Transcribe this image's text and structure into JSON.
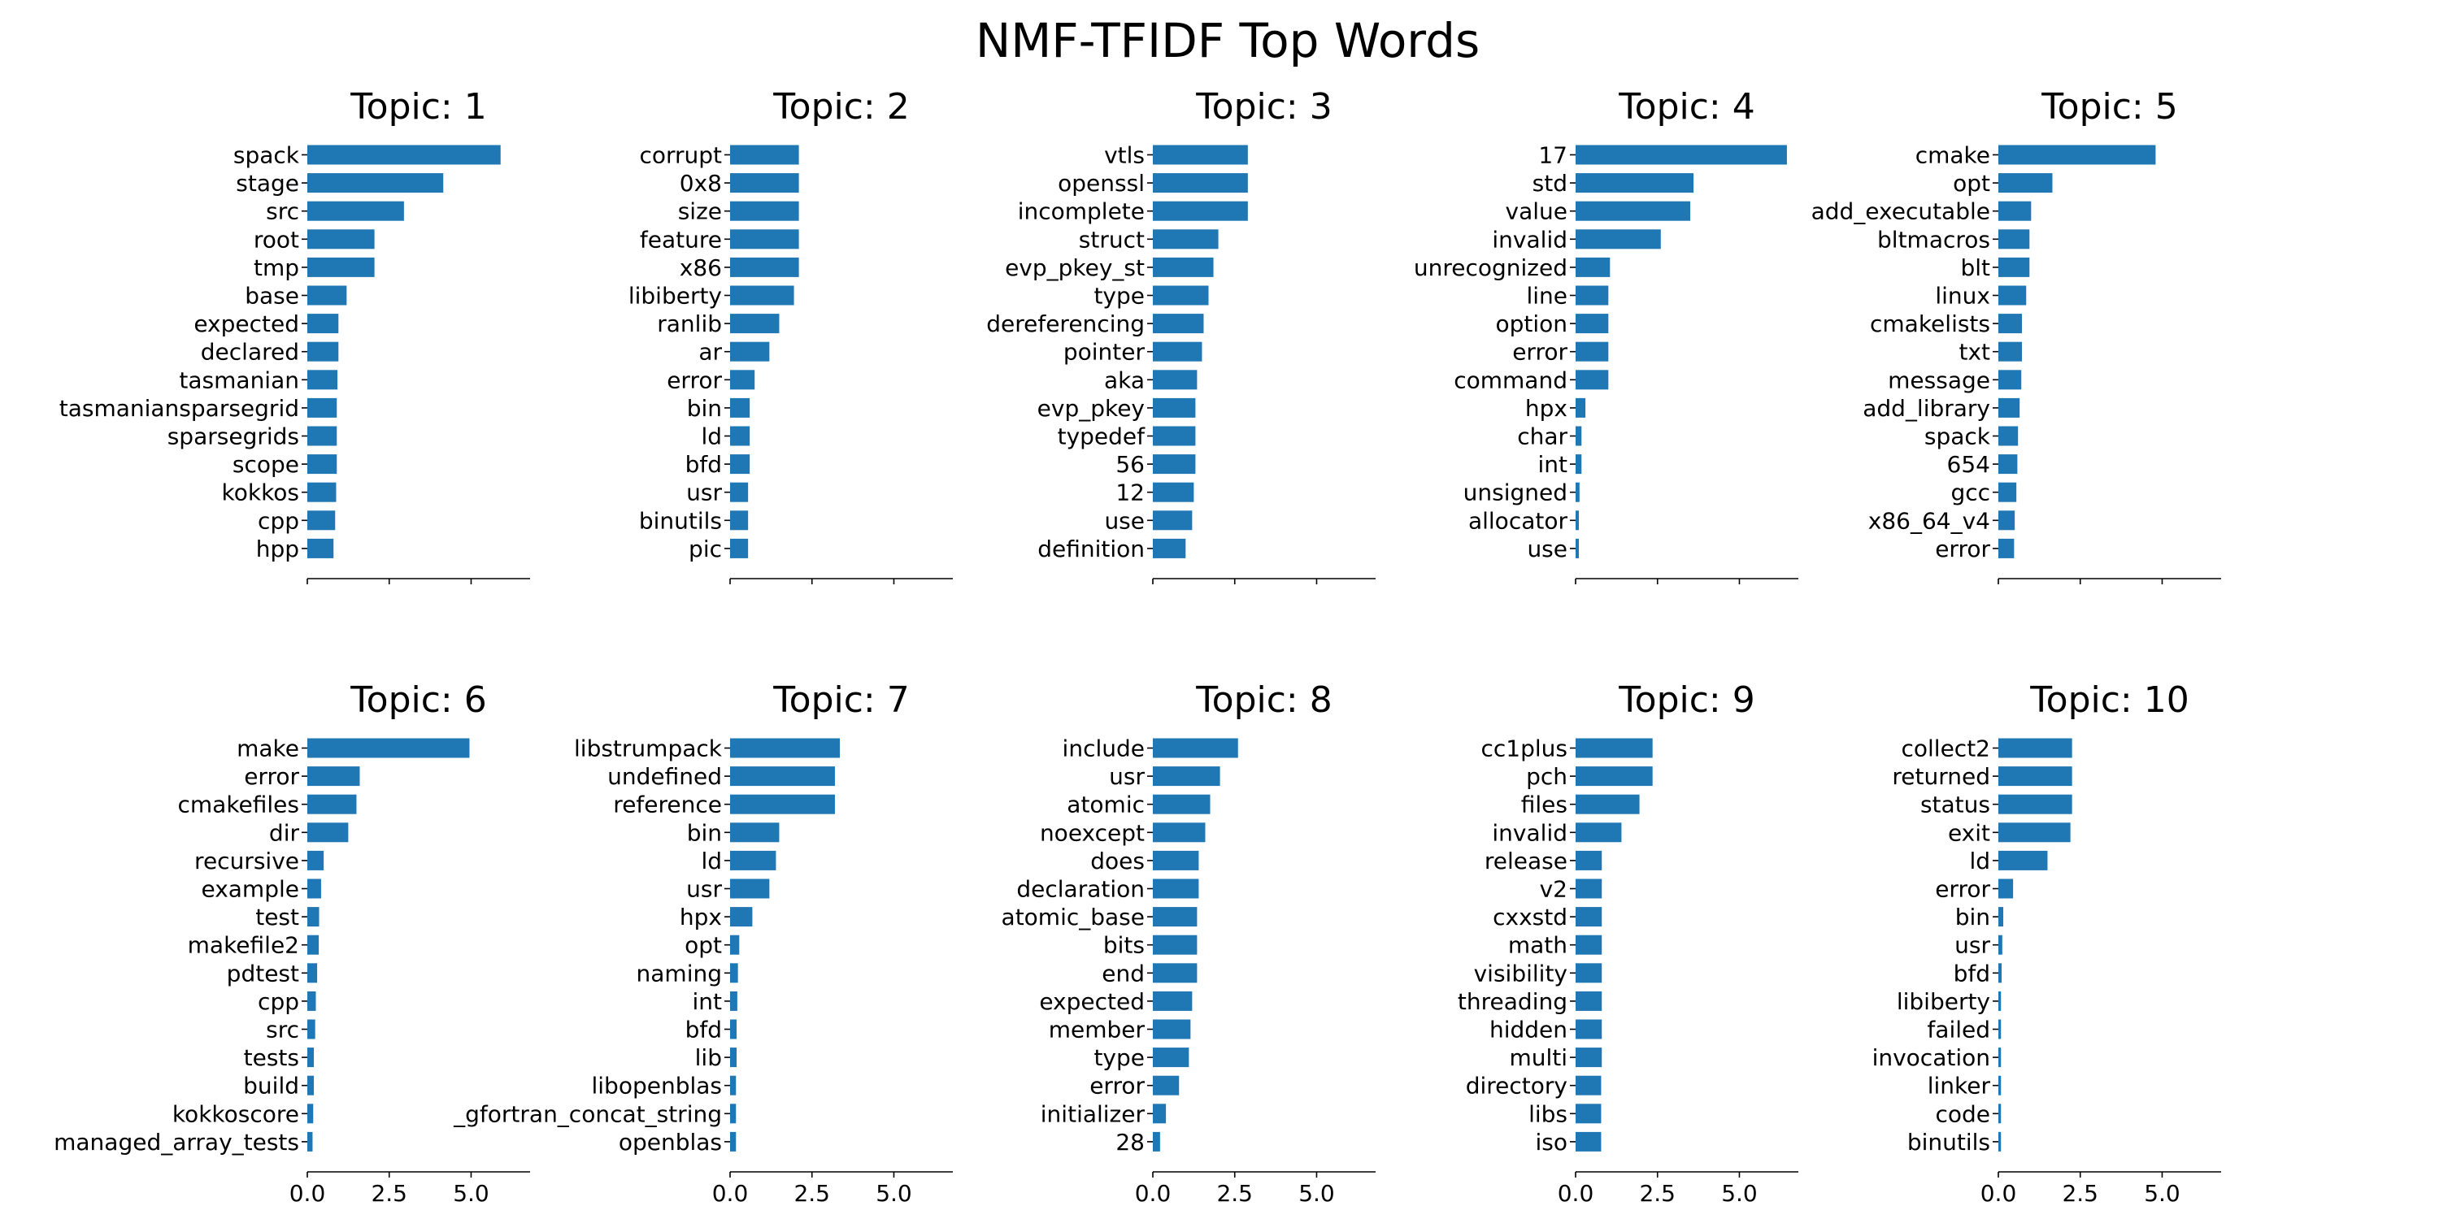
{
  "chart_data": {
    "type": "bar",
    "orientation": "horizontal",
    "title": "NMF-TFIDF Top Words",
    "bar_color": "#1f77b4",
    "xlim": [
      0,
      6.8
    ],
    "x_ticks": [
      0,
      2.5,
      5
    ],
    "x_tick_labels": [
      "0.0",
      "2.5",
      "5.0"
    ],
    "x_tick_labels_visible_on": "bottom-row",
    "grid": false,
    "subplots": [
      {
        "title": "Topic: 1",
        "words": [
          "spack",
          "stage",
          "src",
          "root",
          "tmp",
          "base",
          "expected",
          "declared",
          "tasmanian",
          "tasmaniansparsegrid",
          "sparsegrids",
          "scope",
          "kokkos",
          "cpp",
          "hpp"
        ],
        "values": [
          5.9,
          4.15,
          2.95,
          2.05,
          2.05,
          1.2,
          0.95,
          0.95,
          0.92,
          0.9,
          0.9,
          0.9,
          0.88,
          0.85,
          0.8
        ]
      },
      {
        "title": "Topic: 2",
        "words": [
          "corrupt",
          "0x8",
          "size",
          "feature",
          "x86",
          "libiberty",
          "ranlib",
          "ar",
          "error",
          "bin",
          "ld",
          "bfd",
          "usr",
          "binutils",
          "pic"
        ],
        "values": [
          2.1,
          2.1,
          2.1,
          2.1,
          2.1,
          1.95,
          1.5,
          1.2,
          0.75,
          0.6,
          0.6,
          0.6,
          0.55,
          0.55,
          0.55
        ]
      },
      {
        "title": "Topic: 3",
        "words": [
          "vtls",
          "openssl",
          "incomplete",
          "struct",
          "evp_pkey_st",
          "type",
          "dereferencing",
          "pointer",
          "aka",
          "evp_pkey",
          "typedef",
          "56",
          "12",
          "use",
          "definition"
        ],
        "values": [
          2.9,
          2.9,
          2.9,
          2.0,
          1.85,
          1.7,
          1.55,
          1.5,
          1.35,
          1.3,
          1.3,
          1.3,
          1.25,
          1.2,
          1.0
        ]
      },
      {
        "title": "Topic: 4",
        "words": [
          "17",
          "std",
          "value",
          "invalid",
          "unrecognized",
          "line",
          "option",
          "error",
          "command",
          "hpx",
          "char",
          "int",
          "unsigned",
          "allocator",
          "use"
        ],
        "values": [
          6.45,
          3.6,
          3.5,
          2.6,
          1.05,
          1.0,
          1.0,
          1.0,
          1.0,
          0.3,
          0.18,
          0.18,
          0.12,
          0.1,
          0.1
        ]
      },
      {
        "title": "Topic: 5",
        "words": [
          "cmake",
          "opt",
          "add_executable",
          "bltmacros",
          "blt",
          "linux",
          "cmakelists",
          "txt",
          "message",
          "add_library",
          "spack",
          "654",
          "gcc",
          "x86_64_v4",
          "error"
        ],
        "values": [
          4.8,
          1.65,
          1.0,
          0.95,
          0.95,
          0.85,
          0.72,
          0.72,
          0.7,
          0.65,
          0.6,
          0.58,
          0.55,
          0.5,
          0.48
        ]
      },
      {
        "title": "Topic: 6",
        "words": [
          "make",
          "error",
          "cmakefiles",
          "dir",
          "recursive",
          "example",
          "test",
          "makefile2",
          "pdtest",
          "cpp",
          "src",
          "tests",
          "build",
          "kokkoscore",
          "managed_array_tests"
        ],
        "values": [
          4.95,
          1.6,
          1.5,
          1.25,
          0.5,
          0.42,
          0.36,
          0.35,
          0.3,
          0.26,
          0.24,
          0.2,
          0.2,
          0.18,
          0.16
        ]
      },
      {
        "title": "Topic: 7",
        "words": [
          "libstrumpack",
          "undefined",
          "reference",
          "bin",
          "ld",
          "usr",
          "hpx",
          "opt",
          "naming",
          "int",
          "bfd",
          "lib",
          "libopenblas",
          "_gfortran_concat_string",
          "openblas"
        ],
        "values": [
          3.35,
          3.2,
          3.2,
          1.5,
          1.4,
          1.2,
          0.68,
          0.28,
          0.24,
          0.22,
          0.2,
          0.2,
          0.18,
          0.18,
          0.18
        ]
      },
      {
        "title": "Topic: 8",
        "words": [
          "include",
          "usr",
          "atomic",
          "noexcept",
          "does",
          "declaration",
          "atomic_base",
          "bits",
          "end",
          "expected",
          "member",
          "type",
          "error",
          "initializer",
          "28"
        ],
        "values": [
          2.6,
          2.05,
          1.75,
          1.6,
          1.4,
          1.4,
          1.35,
          1.35,
          1.35,
          1.2,
          1.15,
          1.1,
          0.8,
          0.4,
          0.22
        ]
      },
      {
        "title": "Topic: 9",
        "words": [
          "cc1plus",
          "pch",
          "files",
          "invalid",
          "release",
          "v2",
          "cxxstd",
          "math",
          "visibility",
          "threading",
          "hidden",
          "multi",
          "directory",
          "libs",
          "iso"
        ],
        "values": [
          2.35,
          2.35,
          1.95,
          1.4,
          0.8,
          0.8,
          0.8,
          0.8,
          0.8,
          0.8,
          0.8,
          0.8,
          0.78,
          0.78,
          0.78
        ]
      },
      {
        "title": "Topic: 10",
        "words": [
          "collect2",
          "returned",
          "status",
          "exit",
          "ld",
          "error",
          "bin",
          "usr",
          "bfd",
          "libiberty",
          "failed",
          "invocation",
          "linker",
          "code",
          "binutils"
        ],
        "values": [
          2.25,
          2.25,
          2.25,
          2.2,
          1.5,
          0.45,
          0.15,
          0.12,
          0.1,
          0.08,
          0.08,
          0.08,
          0.08,
          0.08,
          0.08
        ]
      }
    ]
  }
}
